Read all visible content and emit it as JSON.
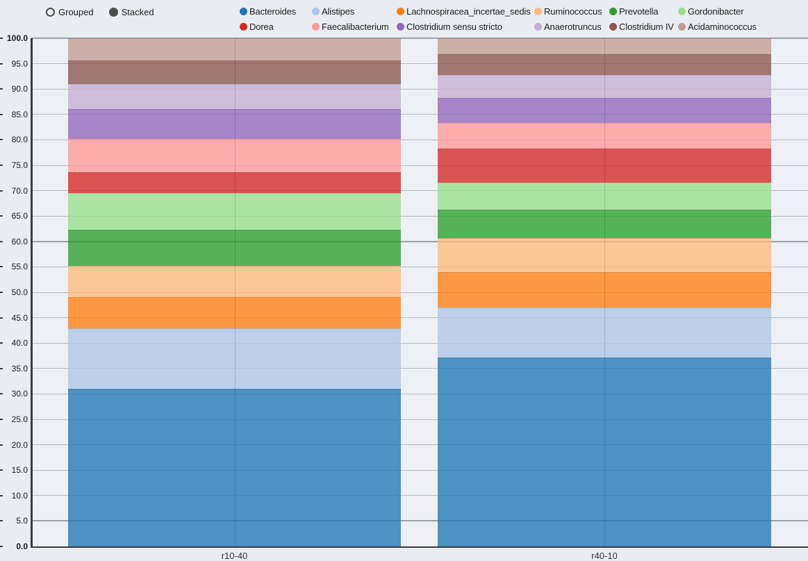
{
  "controls": {
    "options": [
      {
        "label": "Grouped",
        "selected": false
      },
      {
        "label": "Stacked",
        "selected": true
      }
    ]
  },
  "theme": {
    "background": "#e9edf2",
    "plot_background": "#edf0f4",
    "axis_color": "#3a3a3a",
    "gridline_color": "#b4bac2",
    "gridline_major_color": "#9aa0a9",
    "bar_opacity": 0.78,
    "tick_label_color": "#16181b",
    "x_label_color": "#333333"
  },
  "chart_data": {
    "type": "bar",
    "subtype": "stacked-percent",
    "stack_mode": "Stacked",
    "grid": true,
    "legend_position": "top",
    "categories": [
      "r10-40",
      "r40-10"
    ],
    "bars_per_category": 2,
    "ylim": [
      0,
      100
    ],
    "ytick_step": 5,
    "yticks": [
      "0.0",
      "5.0",
      "10.0",
      "15.0",
      "20.0",
      "25.0",
      "30.0",
      "35.0",
      "40.0",
      "45.0",
      "50.0",
      "55.0",
      "60.0",
      "65.0",
      "70.0",
      "75.0",
      "80.0",
      "85.0",
      "90.0",
      "95.0",
      "100.0"
    ],
    "bold_yticks": [
      "0.0",
      "100.0"
    ],
    "emphasized_gridlines": [
      100,
      60,
      5
    ],
    "series": [
      {
        "name": "Bacteroides",
        "color": "#1f77b4",
        "values": [
          31.0,
          37.1
        ]
      },
      {
        "name": "Alistipes",
        "color": "#aec7e8",
        "values": [
          11.9,
          9.9
        ]
      },
      {
        "name": "Lachnospiracea_incertae_sedis",
        "color": "#ff7f0e",
        "values": [
          6.1,
          7.0
        ]
      },
      {
        "name": "Ruminococcus",
        "color": "#ffbb78",
        "values": [
          6.2,
          6.7
        ]
      },
      {
        "name": "Prevotella",
        "color": "#2ca02c",
        "values": [
          7.1,
          5.6
        ]
      },
      {
        "name": "Gordonibacter",
        "color": "#98df8a",
        "values": [
          7.3,
          5.3
        ]
      },
      {
        "name": "Dorea",
        "color": "#d62728",
        "values": [
          4.0,
          6.7
        ]
      },
      {
        "name": "Faecalibacterium",
        "color": "#ff9896",
        "values": [
          6.6,
          5.1
        ]
      },
      {
        "name": "Clostridium sensu stricto",
        "color": "#9467bd",
        "values": [
          5.9,
          4.8
        ]
      },
      {
        "name": "Anaerotruncus",
        "color": "#c5b0d5",
        "values": [
          4.9,
          4.6
        ]
      },
      {
        "name": "Clostridium IV",
        "color": "#8c564b",
        "values": [
          4.6,
          4.0
        ]
      },
      {
        "name": "Acidaminococcus",
        "color": "#c49c94",
        "values": [
          4.4,
          3.2
        ]
      }
    ]
  }
}
